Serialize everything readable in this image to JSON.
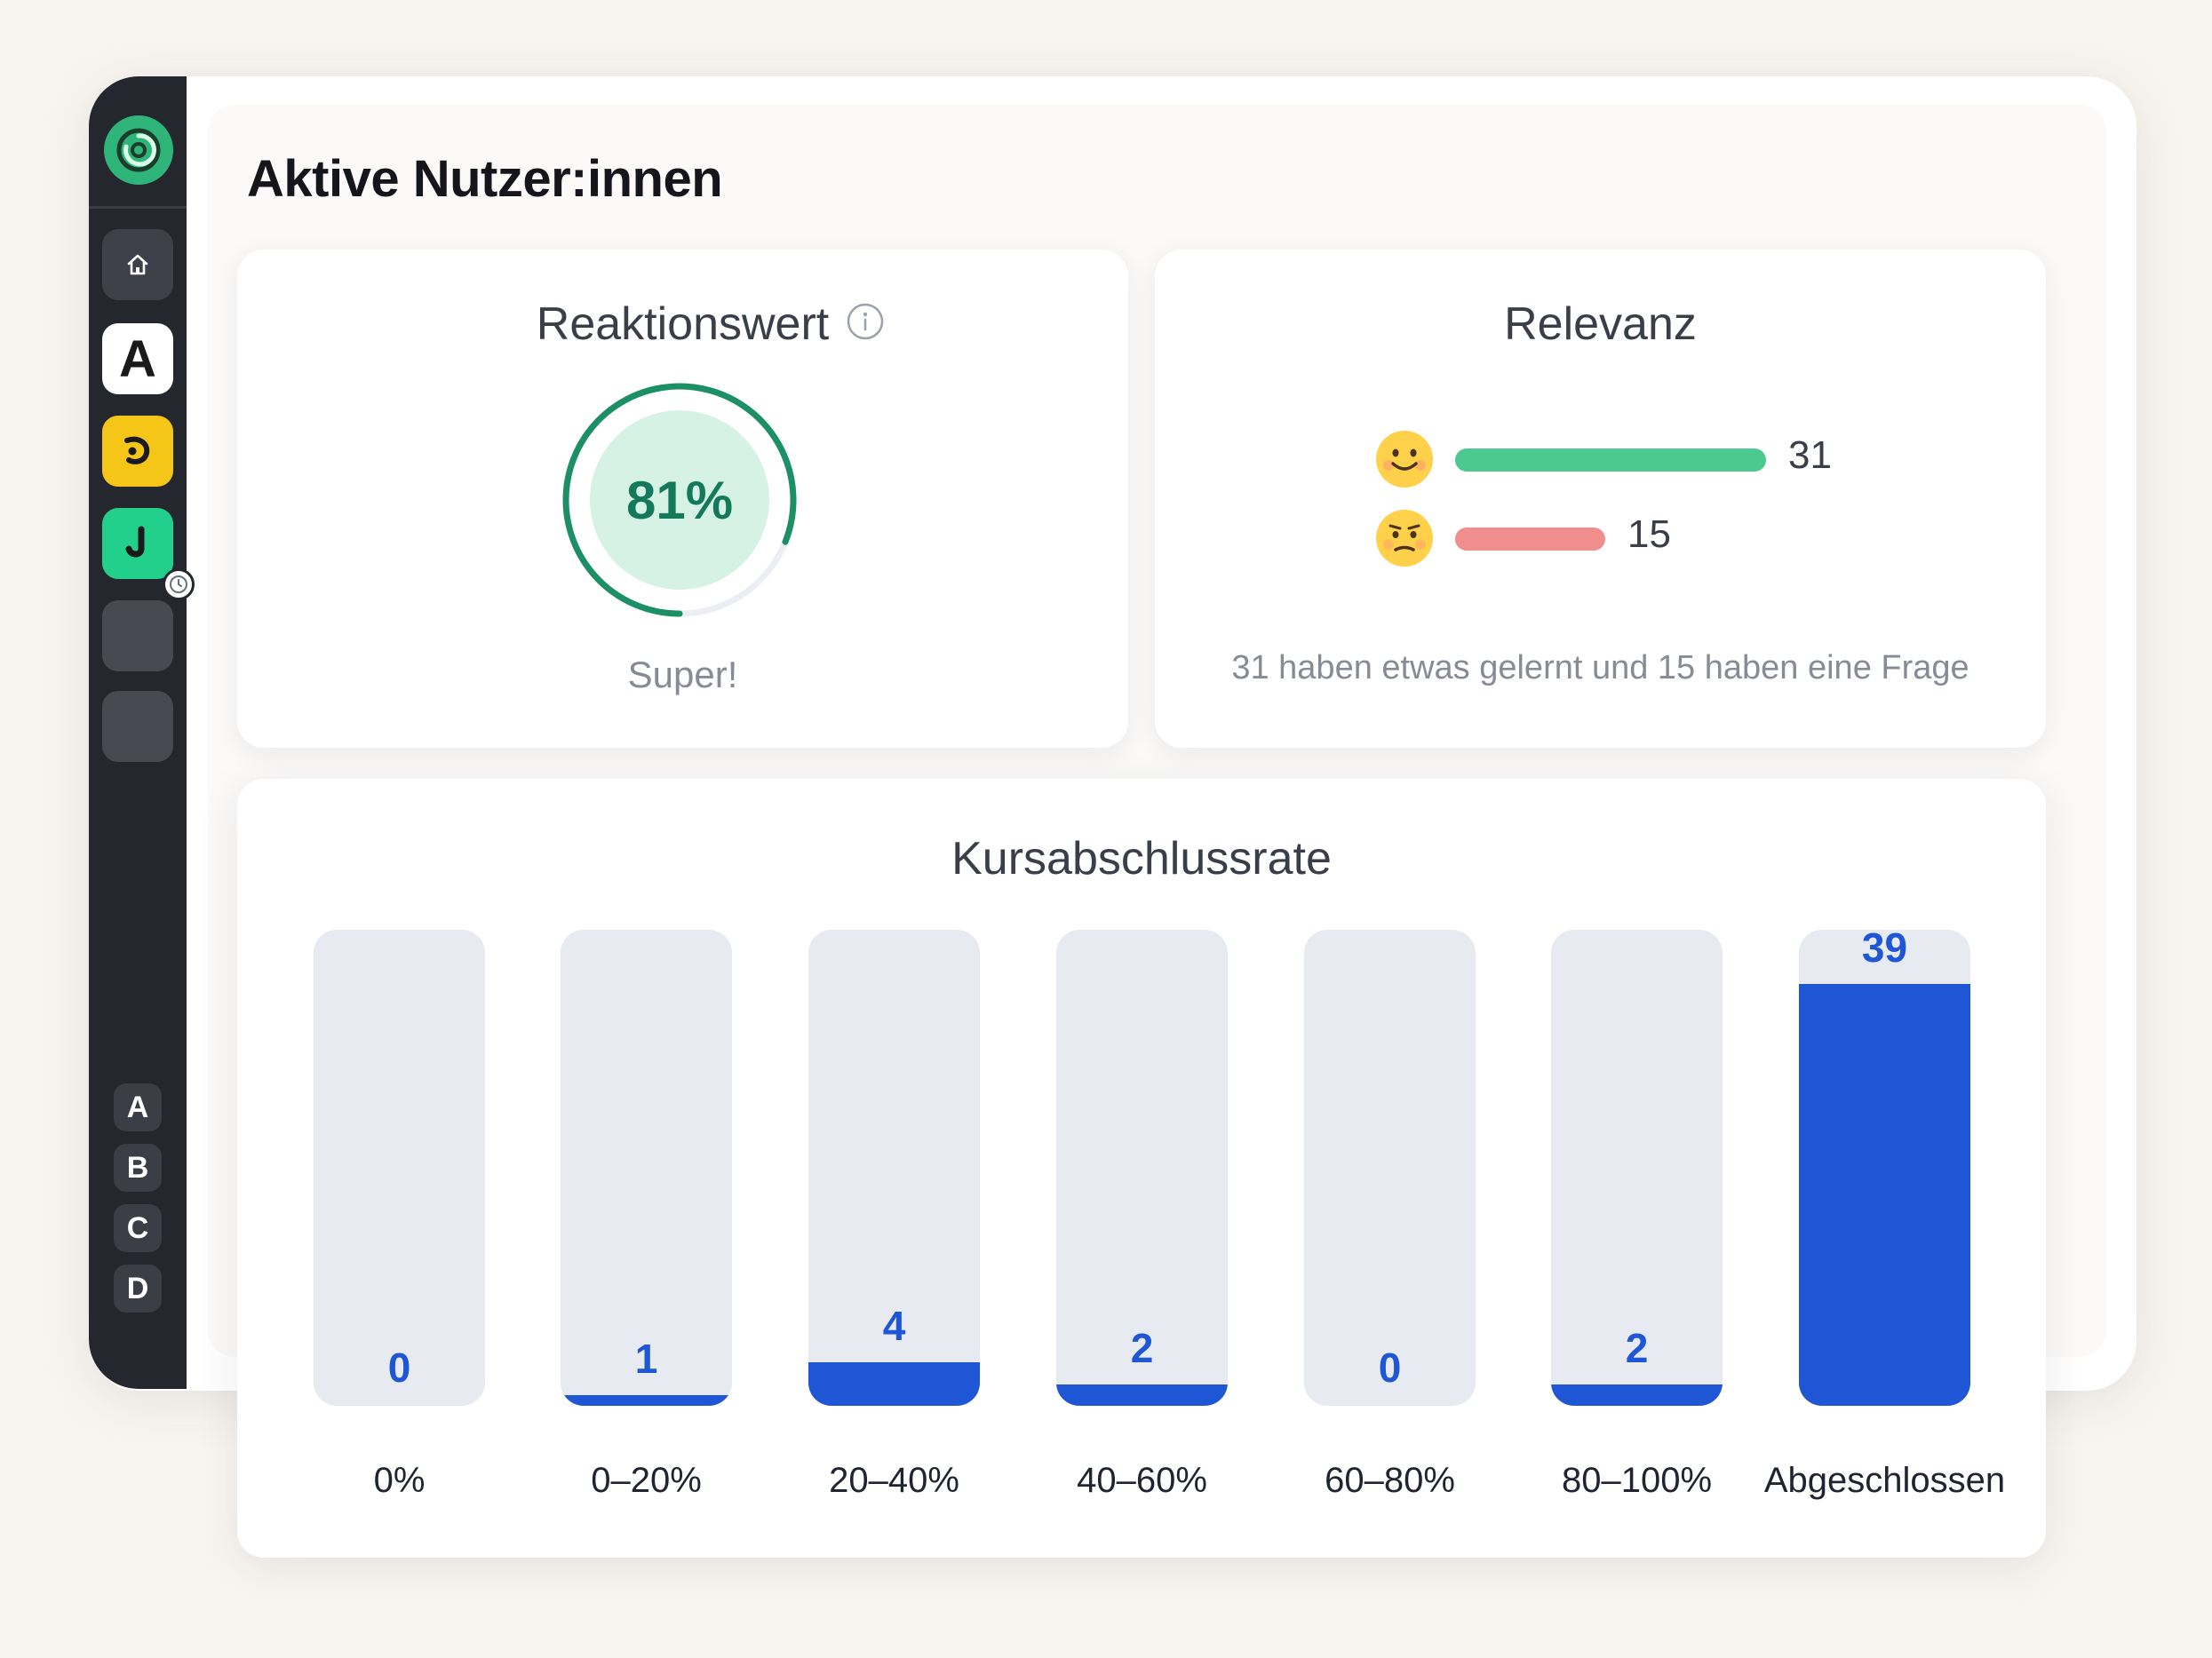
{
  "page": {
    "title": "Aktive Nutzer:innen"
  },
  "sidebar": {
    "logo_icon": "app-logo-icon",
    "items": [
      {
        "name": "home",
        "icon": "home-icon"
      },
      {
        "name": "a",
        "label": "A"
      },
      {
        "name": "yellow-app",
        "icon": "yellow-app-icon",
        "color": "#f5c518"
      },
      {
        "name": "green-app",
        "icon": "green-app-icon",
        "color": "#22d08b",
        "badge_icon": "clock-icon"
      },
      {
        "name": "empty-1"
      },
      {
        "name": "empty-2"
      }
    ],
    "letters": [
      "A",
      "B",
      "C",
      "D"
    ]
  },
  "reaktionswert": {
    "title": "Reaktionswert",
    "value_text": "81%",
    "value_fraction": 0.81,
    "caption": "Super!",
    "info_icon": "info-icon",
    "ring_color": "#1c8f64",
    "fill_color": "#d6f2e5"
  },
  "relevanz": {
    "title": "Relevanz",
    "rows": [
      {
        "icon": "happy-face-icon",
        "count": "31",
        "value": 31,
        "color": "#4cc98e"
      },
      {
        "icon": "confused-face-icon",
        "count": "15",
        "value": 15,
        "color": "#f08d8d"
      }
    ],
    "caption": "31 haben etwas gelernt und 15 haben eine Frage"
  },
  "chart_data": {
    "type": "bar",
    "title": "Kursabschlussrate",
    "categories": [
      "0%",
      "0–20%",
      "20–40%",
      "40–60%",
      "60–80%",
      "80–100%",
      "Abgeschlossen"
    ],
    "values": [
      0,
      1,
      4,
      2,
      0,
      2,
      39
    ],
    "value_labels": [
      "0",
      "1",
      "4",
      "2",
      "0",
      "2",
      "39"
    ],
    "ylim": [
      0,
      44
    ],
    "bar_color": "#1e56d6",
    "track_color": "#e8eaf2"
  }
}
